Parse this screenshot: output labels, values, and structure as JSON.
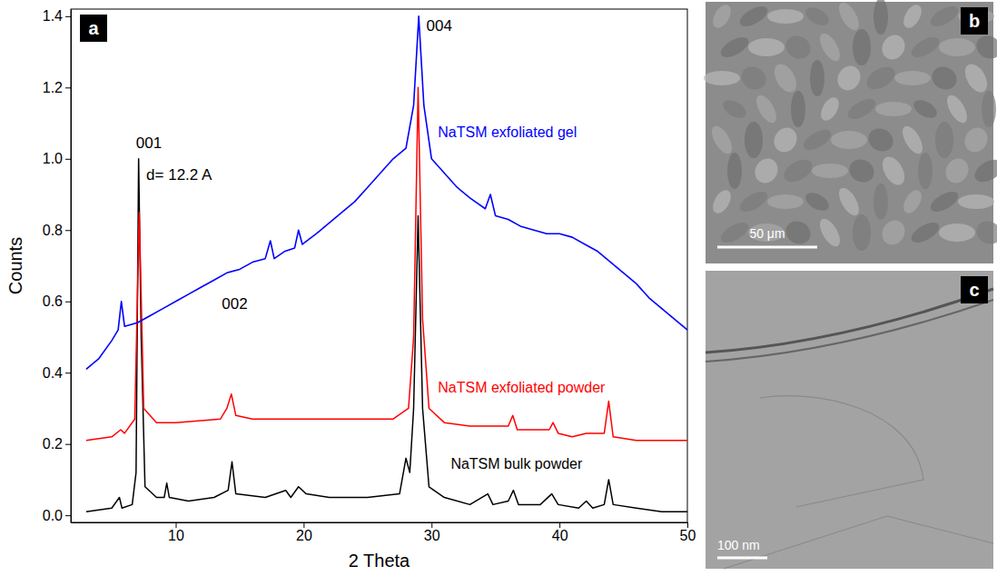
{
  "chart_data": {
    "type": "line",
    "panel": "a",
    "x_label": "2 Theta",
    "y_label": "Counts",
    "xlim": [
      1.8,
      50
    ],
    "ylim": [
      -0.02,
      1.42
    ],
    "xticks": [
      10,
      20,
      30,
      40,
      50
    ],
    "yticks": [
      {
        "value": 0,
        "label": "0.0"
      },
      {
        "value": 0.2,
        "label": "0.2"
      },
      {
        "value": 0.4,
        "label": "0.4"
      },
      {
        "value": 0.6,
        "label": "0.6"
      },
      {
        "value": 0.8,
        "label": "0.8"
      },
      {
        "value": 1.0,
        "label": "1.0"
      },
      {
        "value": 1.2,
        "label": "1.2"
      },
      {
        "value": 1.4,
        "label": "1.4"
      }
    ],
    "grid": false,
    "annotations": [
      {
        "text": "001",
        "x": 6.9,
        "y": 1.03
      },
      {
        "text": "d= 12.2 A",
        "x": 7.7,
        "y": 0.94
      },
      {
        "text": "002",
        "x": 13.6,
        "y": 0.58
      },
      {
        "text": "004",
        "x": 29.6,
        "y": 1.36
      }
    ],
    "series": [
      {
        "name": "NaTSM bulk powder",
        "color": "#000000",
        "x": [
          3,
          5,
          5.6,
          5.8,
          6.6,
          6.9,
          7.1,
          7.3,
          7.6,
          8.5,
          9.1,
          9.3,
          9.5,
          11,
          13,
          14.1,
          14.4,
          14.7,
          17,
          18.6,
          19.0,
          19.6,
          20.2,
          22,
          25,
          27.5,
          28.0,
          28.3,
          28.6,
          28.95,
          29.3,
          29.8,
          31,
          33,
          34.4,
          34.8,
          36.0,
          36.4,
          36.8,
          38.5,
          39.4,
          39.9,
          41.5,
          42.1,
          42.6,
          43.5,
          43.85,
          44.2,
          46,
          48,
          50
        ],
        "values": [
          0.01,
          0.02,
          0.05,
          0.02,
          0.03,
          0.12,
          1.0,
          0.5,
          0.08,
          0.05,
          0.05,
          0.09,
          0.05,
          0.04,
          0.05,
          0.07,
          0.15,
          0.06,
          0.05,
          0.07,
          0.05,
          0.08,
          0.06,
          0.05,
          0.05,
          0.06,
          0.16,
          0.12,
          0.3,
          0.84,
          0.3,
          0.08,
          0.05,
          0.03,
          0.06,
          0.03,
          0.04,
          0.07,
          0.03,
          0.03,
          0.06,
          0.03,
          0.02,
          0.04,
          0.02,
          0.03,
          0.1,
          0.03,
          0.02,
          0.01,
          0.01
        ]
      },
      {
        "name": "NaTSM exfoliated powder",
        "color": "#ff0000",
        "x": [
          3,
          5,
          5.7,
          6.0,
          6.8,
          7.15,
          7.5,
          8.5,
          10,
          13.5,
          14.0,
          14.35,
          14.7,
          16,
          20,
          24,
          27,
          28.2,
          28.6,
          28.95,
          29.3,
          29.8,
          31,
          33,
          35,
          36.0,
          36.35,
          36.7,
          39.2,
          39.5,
          39.9,
          41,
          42.1,
          43.5,
          43.85,
          44.2,
          46,
          48,
          50
        ],
        "values": [
          0.21,
          0.22,
          0.24,
          0.23,
          0.27,
          0.85,
          0.3,
          0.26,
          0.26,
          0.27,
          0.3,
          0.34,
          0.28,
          0.27,
          0.27,
          0.27,
          0.27,
          0.3,
          0.5,
          1.2,
          0.55,
          0.3,
          0.26,
          0.25,
          0.25,
          0.25,
          0.28,
          0.24,
          0.24,
          0.26,
          0.23,
          0.22,
          0.23,
          0.23,
          0.32,
          0.22,
          0.21,
          0.21,
          0.21
        ]
      },
      {
        "name": "NaTSM exfoliated gel",
        "color": "#0000ff",
        "x": [
          3,
          4,
          5,
          5.5,
          5.75,
          6.0,
          7,
          8,
          9,
          10,
          11,
          12,
          13,
          14,
          15,
          16,
          17,
          17.4,
          17.7,
          18.5,
          19.3,
          19.6,
          19.9,
          21,
          22,
          23,
          24,
          25,
          26,
          27,
          28,
          28.6,
          29.0,
          29.4,
          30,
          31,
          32,
          33,
          34.2,
          34.6,
          35,
          36,
          37,
          38,
          39,
          40,
          41,
          42,
          43,
          44,
          45,
          46,
          47,
          48,
          49,
          50
        ],
        "values": [
          0.41,
          0.44,
          0.49,
          0.52,
          0.6,
          0.53,
          0.54,
          0.56,
          0.58,
          0.6,
          0.62,
          0.64,
          0.66,
          0.68,
          0.69,
          0.71,
          0.72,
          0.77,
          0.72,
          0.74,
          0.75,
          0.8,
          0.76,
          0.79,
          0.82,
          0.85,
          0.88,
          0.92,
          0.96,
          1.0,
          1.03,
          1.15,
          1.4,
          1.15,
          1.0,
          0.96,
          0.92,
          0.89,
          0.86,
          0.9,
          0.84,
          0.83,
          0.81,
          0.8,
          0.79,
          0.79,
          0.78,
          0.76,
          0.74,
          0.71,
          0.68,
          0.65,
          0.61,
          0.58,
          0.55,
          0.52
        ]
      }
    ]
  },
  "images": [
    {
      "panel": "b",
      "scale_bar": "50 μm"
    },
    {
      "panel": "c",
      "scale_bar": "100 nm"
    }
  ]
}
